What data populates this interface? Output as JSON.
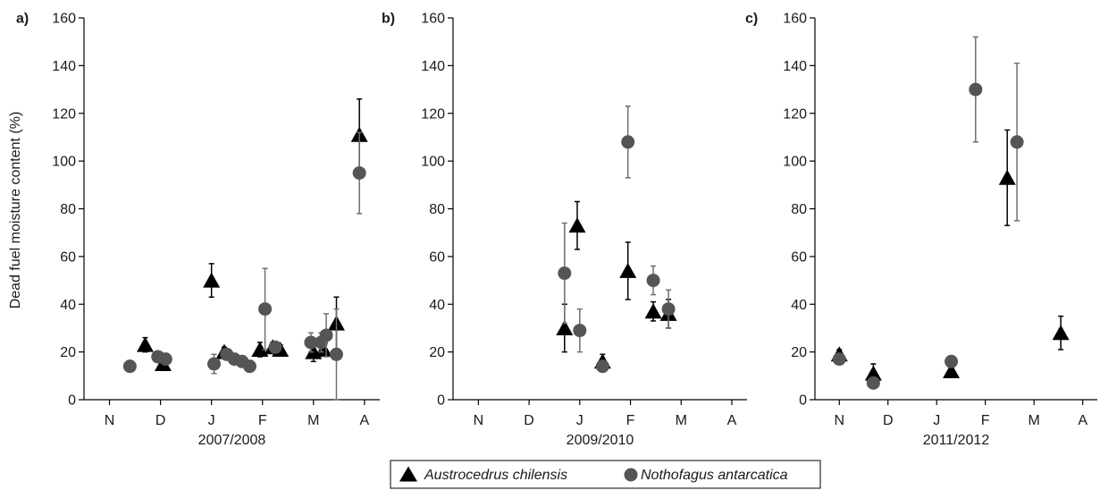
{
  "y_axis_label": "Dead fuel moisture content (%)",
  "legend": [
    {
      "name": "Austrocedrus chilensis",
      "marker": "triangle",
      "color": "#000000"
    },
    {
      "name": "Nothofagus antarcatica",
      "marker": "circle",
      "color": "#555555"
    }
  ],
  "chart_data": [
    {
      "type": "scatter",
      "panel": "a)",
      "xlabel": "2007/2008",
      "ylabel": "Dead fuel moisture content (%)",
      "ylim": [
        0,
        160
      ],
      "yticks": [
        0,
        20,
        40,
        60,
        80,
        100,
        120,
        140,
        160
      ],
      "xlim": [
        0,
        5.8
      ],
      "month_ticks": [
        {
          "label": "N",
          "x": 0.5
        },
        {
          "label": "D",
          "x": 1.5
        },
        {
          "label": "J",
          "x": 2.5
        },
        {
          "label": "F",
          "x": 3.5
        },
        {
          "label": "M",
          "x": 4.5
        },
        {
          "label": "A",
          "x": 5.5
        }
      ],
      "series": [
        {
          "name": "Austrocedrus chilensis",
          "marker": "triangle",
          "points": [
            {
              "x": 1.2,
              "y": 23,
              "err": 3
            },
            {
              "x": 1.55,
              "y": 15,
              "err": 2
            },
            {
              "x": 2.5,
              "y": 50,
              "err": 7
            },
            {
              "x": 2.75,
              "y": 20,
              "err": 2
            },
            {
              "x": 3.45,
              "y": 21,
              "err": 3
            },
            {
              "x": 3.7,
              "y": 22,
              "err": 2
            },
            {
              "x": 3.85,
              "y": 21,
              "err": 2
            },
            {
              "x": 4.5,
              "y": 20,
              "err": 4
            },
            {
              "x": 4.7,
              "y": 21,
              "err": 2
            },
            {
              "x": 4.95,
              "y": 32,
              "err": 11
            },
            {
              "x": 5.4,
              "y": 111,
              "err": 15
            }
          ]
        },
        {
          "name": "Nothofagus antarcatica",
          "marker": "circle",
          "points": [
            {
              "x": 0.9,
              "y": 14,
              "err": 1
            },
            {
              "x": 1.45,
              "y": 18,
              "err": 2
            },
            {
              "x": 1.6,
              "y": 17,
              "err": 2
            },
            {
              "x": 2.55,
              "y": 15,
              "err": 4
            },
            {
              "x": 2.8,
              "y": 19,
              "err": 2
            },
            {
              "x": 2.95,
              "y": 17,
              "err": 2
            },
            {
              "x": 3.1,
              "y": 16,
              "err": 2
            },
            {
              "x": 3.25,
              "y": 14,
              "err": 2
            },
            {
              "x": 3.55,
              "y": 38,
              "err": 17
            },
            {
              "x": 3.75,
              "y": 22,
              "err": 2
            },
            {
              "x": 4.45,
              "y": 24,
              "err": 4
            },
            {
              "x": 4.65,
              "y": 24,
              "err": 4
            },
            {
              "x": 4.75,
              "y": 27,
              "err": 9
            },
            {
              "x": 4.95,
              "y": 19,
              "err": 19
            },
            {
              "x": 5.4,
              "y": 95,
              "err": 17
            }
          ]
        }
      ]
    },
    {
      "type": "scatter",
      "panel": "b)",
      "xlabel": "2009/2010",
      "ylabel": "Dead fuel moisture content (%)",
      "ylim": [
        0,
        160
      ],
      "yticks": [
        0,
        20,
        40,
        60,
        80,
        100,
        120,
        140,
        160
      ],
      "xlim": [
        0,
        5.8
      ],
      "month_ticks": [
        {
          "label": "N",
          "x": 0.5
        },
        {
          "label": "D",
          "x": 1.5
        },
        {
          "label": "J",
          "x": 2.5
        },
        {
          "label": "F",
          "x": 3.5
        },
        {
          "label": "M",
          "x": 4.5
        },
        {
          "label": "A",
          "x": 5.5
        }
      ],
      "series": [
        {
          "name": "Austrocedrus chilensis",
          "marker": "triangle",
          "points": [
            {
              "x": 2.2,
              "y": 30,
              "err": 10
            },
            {
              "x": 2.45,
              "y": 73,
              "err": 10
            },
            {
              "x": 2.95,
              "y": 16,
              "err": 3
            },
            {
              "x": 3.45,
              "y": 54,
              "err": 12
            },
            {
              "x": 3.95,
              "y": 37,
              "err": 4
            },
            {
              "x": 4.25,
              "y": 36,
              "err": 6
            }
          ]
        },
        {
          "name": "Nothofagus antarcatica",
          "marker": "circle",
          "points": [
            {
              "x": 2.2,
              "y": 53,
              "err": 21
            },
            {
              "x": 2.5,
              "y": 29,
              "err": 9
            },
            {
              "x": 2.95,
              "y": 14,
              "err": 2
            },
            {
              "x": 3.45,
              "y": 108,
              "err": 15
            },
            {
              "x": 3.95,
              "y": 50,
              "err": 6
            },
            {
              "x": 4.25,
              "y": 38,
              "err": 8
            }
          ]
        }
      ]
    },
    {
      "type": "scatter",
      "panel": "c)",
      "xlabel": "2011/2012",
      "ylabel": "Dead fuel moisture content (%)",
      "ylim": [
        0,
        160
      ],
      "yticks": [
        0,
        20,
        40,
        60,
        80,
        100,
        120,
        140,
        160
      ],
      "xlim": [
        0,
        5.8
      ],
      "month_ticks": [
        {
          "label": "N",
          "x": 0.5
        },
        {
          "label": "D",
          "x": 1.5
        },
        {
          "label": "J",
          "x": 2.5
        },
        {
          "label": "F",
          "x": 3.5
        },
        {
          "label": "M",
          "x": 4.5
        },
        {
          "label": "A",
          "x": 5.5
        }
      ],
      "series": [
        {
          "name": "Austrocedrus chilensis",
          "marker": "triangle",
          "points": [
            {
              "x": 0.5,
              "y": 19,
              "err": 2
            },
            {
              "x": 1.2,
              "y": 11,
              "err": 4
            },
            {
              "x": 2.8,
              "y": 12,
              "err": 1
            },
            {
              "x": 3.95,
              "y": 93,
              "err": 20
            },
            {
              "x": 5.05,
              "y": 28,
              "err": 7
            }
          ]
        },
        {
          "name": "Nothofagus antarcatica",
          "marker": "circle",
          "points": [
            {
              "x": 0.5,
              "y": 17,
              "err": 1
            },
            {
              "x": 1.2,
              "y": 7,
              "err": 2
            },
            {
              "x": 2.8,
              "y": 16,
              "err": 1
            },
            {
              "x": 3.3,
              "y": 130,
              "err": 22
            },
            {
              "x": 4.15,
              "y": 108,
              "err": 33
            }
          ]
        }
      ]
    }
  ]
}
